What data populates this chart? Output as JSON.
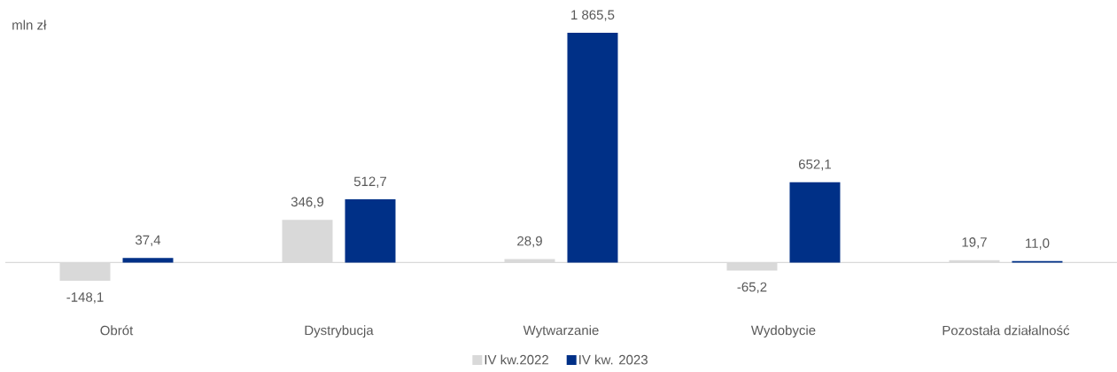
{
  "chart_data": {
    "type": "bar",
    "ylabel": "mln zł",
    "categories": [
      "Obrót",
      "Dystrybucja",
      "Wytwarzanie",
      "Wydobycie",
      "Pozostała działalność"
    ],
    "series": [
      {
        "name": "IV kw.2022",
        "color": "#d9d9d9",
        "values": [
          -148.1,
          346.9,
          28.9,
          -65.2,
          19.7
        ],
        "value_labels": [
          "-148,1",
          "346,9",
          "28,9",
          "-65,2",
          "19,7"
        ]
      },
      {
        "name": "IV kw. 2023",
        "color": "#003087",
        "values": [
          37.4,
          512.7,
          1865.5,
          652.1,
          11.0
        ],
        "value_labels": [
          "37,4",
          "512,7",
          "1 865,5",
          "652,1",
          "11,0"
        ]
      }
    ],
    "legend": "bottom"
  }
}
